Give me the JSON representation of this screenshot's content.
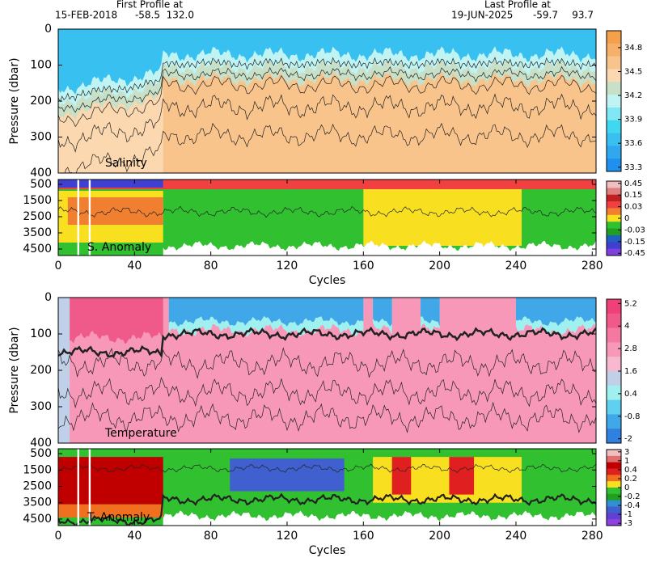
{
  "header": {
    "first_label": "First Profile at",
    "first_date": "15-FEB-2018",
    "first_lat": "-58.5",
    "first_lon": "132.0",
    "last_label": "Last Profile at",
    "last_date": "19-JUN-2025",
    "last_lat": "-59.7",
    "last_lon": "93.7"
  },
  "chart_data": [
    {
      "type": "contour",
      "label": "Salinity",
      "ylabel": "Pressure (dbar)",
      "xlim": [
        0,
        282
      ],
      "ylim": [
        0,
        400
      ],
      "yticks": [
        0,
        100,
        200,
        300,
        400
      ],
      "colorbar": {
        "ticks": [
          34.8,
          34.5,
          34.2,
          33.9,
          33.6,
          33.3
        ],
        "colors": [
          "#f5a04a",
          "#f7b06a",
          "#f9c48c",
          "#fbd8b0",
          "#c8e0c8",
          "#c0f4f4",
          "#80e8f4",
          "#40d8f0",
          "#38c0f0",
          "#30a8f0",
          "#2090f0"
        ]
      }
    },
    {
      "type": "contour",
      "label": "S. Anomaly",
      "xlabel": "Cycles",
      "xlim": [
        0,
        282
      ],
      "xticks": [
        0,
        40,
        80,
        120,
        160,
        200,
        240,
        280
      ],
      "ylim": [
        200,
        4900
      ],
      "yticks": [
        500,
        1500,
        2500,
        3500,
        4500
      ],
      "colorbar": {
        "ticks": [
          0.45,
          0.15,
          0.03,
          0,
          -0.03,
          -0.15,
          -0.45
        ],
        "colors": [
          "#f0c0c0",
          "#e08080",
          "#c02020",
          "#f04040",
          "#f08030",
          "#f8e020",
          "#30c030",
          "#20a020",
          "#2060c0",
          "#4040d0",
          "#8040e0"
        ]
      }
    },
    {
      "type": "contour",
      "label": "Temperature",
      "ylabel": "Pressure (dbar)",
      "xlim": [
        0,
        282
      ],
      "ylim": [
        0,
        400
      ],
      "yticks": [
        0,
        100,
        200,
        300,
        400
      ],
      "colorbar": {
        "ticks": [
          5.2,
          4,
          2.8,
          1.6,
          0.4,
          -0.8,
          -2
        ],
        "colors": [
          "#f0407a",
          "#f05a8a",
          "#f478a0",
          "#f898b8",
          "#f8b8d0",
          "#c0d0e8",
          "#a0f0f0",
          "#60d0f0",
          "#40a8e8",
          "#3080e0"
        ]
      }
    },
    {
      "type": "contour",
      "label": "T. Anomaly",
      "xlabel": "Cycles",
      "xlim": [
        0,
        282
      ],
      "xticks": [
        0,
        40,
        80,
        120,
        160,
        200,
        240,
        280
      ],
      "ylim": [
        200,
        4900
      ],
      "yticks": [
        500,
        1500,
        2500,
        3500,
        4500
      ],
      "colorbar": {
        "ticks": [
          3,
          1,
          0.4,
          0.2,
          0,
          -0.2,
          -0.4,
          -1,
          -3
        ],
        "colors": [
          "#f0c0c0",
          "#e07070",
          "#c00000",
          "#e02020",
          "#f07020",
          "#f8e020",
          "#30c030",
          "#20a020",
          "#3090d0",
          "#4060d0",
          "#6040d0",
          "#9040e0"
        ]
      }
    }
  ]
}
